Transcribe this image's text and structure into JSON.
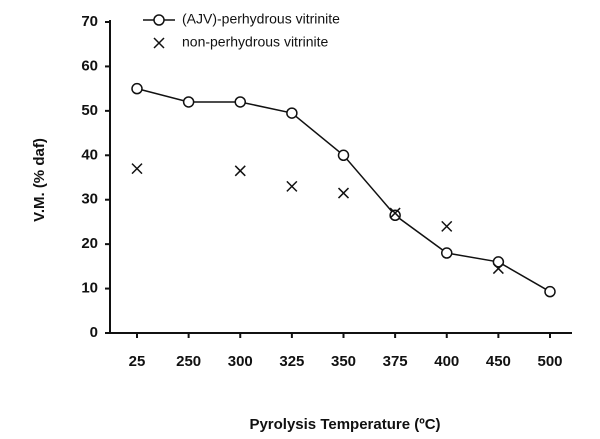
{
  "chart_data": {
    "type": "line",
    "xlabel": "Pyrolysis Temperature (ºC)",
    "ylabel": "V.M. (% daf)",
    "categories": [
      "25",
      "250",
      "300",
      "325",
      "350",
      "375",
      "400",
      "450",
      "500"
    ],
    "series": [
      {
        "name": "(AJV)-perhydrous vitrinite",
        "color": "#111111",
        "marker": "circle",
        "line": true,
        "values": [
          55,
          52,
          52,
          49.5,
          40,
          26.5,
          18,
          16,
          9.3
        ]
      },
      {
        "name": "non-perhydrous vitrinite",
        "color": "#111111",
        "marker": "x",
        "line": false,
        "values": [
          37,
          null,
          36.5,
          33,
          31.5,
          27,
          24,
          14.5,
          null
        ]
      }
    ],
    "ylim": [
      0,
      70
    ],
    "yticks": [
      0,
      10,
      20,
      30,
      40,
      50,
      60,
      70
    ],
    "legend": "upper left"
  }
}
